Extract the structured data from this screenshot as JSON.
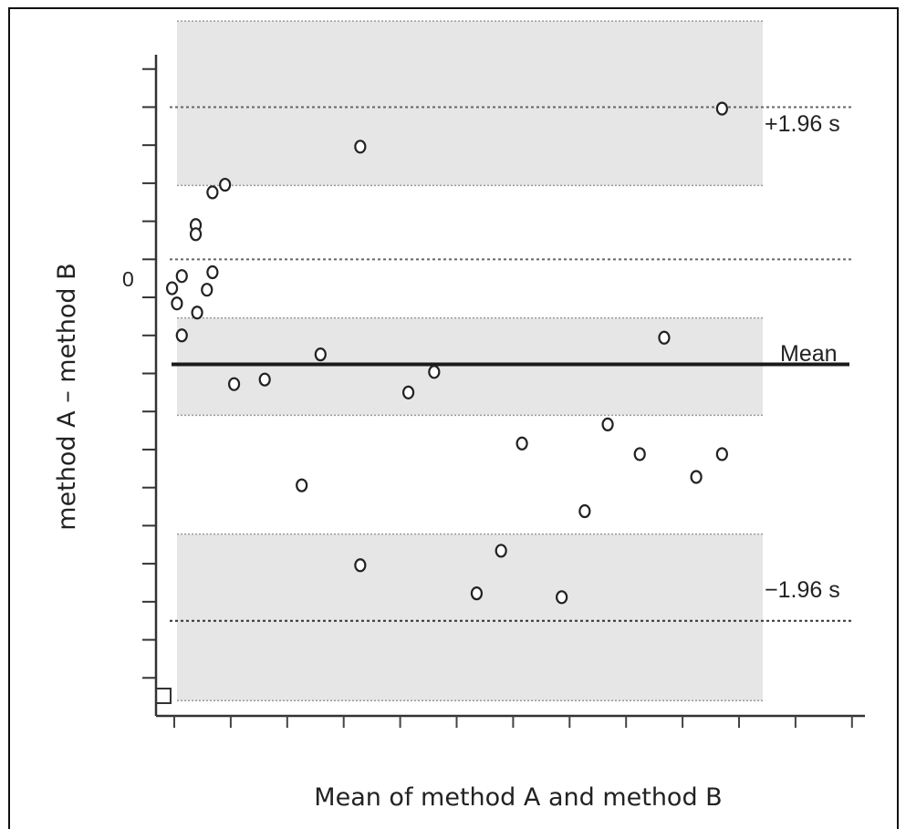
{
  "chart_data": {
    "type": "scatter",
    "title": "",
    "xlabel": "Mean of method A and method B",
    "ylabel": "method A – method B",
    "y_tick_labels": [
      {
        "value": 0,
        "label": "0"
      }
    ],
    "xlim": [
      0,
      100
    ],
    "ylim": [
      -6.0,
      3.0
    ],
    "grid": false,
    "reference_lines": {
      "upper_loa": {
        "value": 2.0,
        "label": "+1.96 s"
      },
      "zero": {
        "value": 0.0
      },
      "mean": {
        "value": -1.38,
        "label": "Mean"
      },
      "lower_loa": {
        "value": -4.75,
        "label": "−1.96 s"
      }
    },
    "confidence_bands": [
      {
        "name": "upper",
        "y_range": [
          0.97,
          3.13
        ]
      },
      {
        "name": "mean",
        "y_range": [
          -2.05,
          -0.77
        ]
      },
      {
        "name": "lower",
        "y_range": [
          -5.8,
          -3.61
        ]
      }
    ],
    "points": [
      {
        "x": 2.3,
        "y": -0.38
      },
      {
        "x": 3.0,
        "y": -0.58
      },
      {
        "x": 3.7,
        "y": -0.22
      },
      {
        "x": 3.7,
        "y": -1.0
      },
      {
        "x": 5.7,
        "y": 0.45
      },
      {
        "x": 5.7,
        "y": 0.33
      },
      {
        "x": 5.9,
        "y": -0.7
      },
      {
        "x": 7.3,
        "y": -0.4
      },
      {
        "x": 8.1,
        "y": -0.17
      },
      {
        "x": 8.1,
        "y": 0.88
      },
      {
        "x": 9.9,
        "y": 0.98
      },
      {
        "x": 11.2,
        "y": -1.64
      },
      {
        "x": 15.6,
        "y": -1.58
      },
      {
        "x": 20.9,
        "y": -2.97
      },
      {
        "x": 23.6,
        "y": -1.25
      },
      {
        "x": 29.3,
        "y": 1.48
      },
      {
        "x": 29.3,
        "y": -4.02
      },
      {
        "x": 36.2,
        "y": -1.75
      },
      {
        "x": 39.9,
        "y": -1.48
      },
      {
        "x": 46.0,
        "y": -4.39
      },
      {
        "x": 49.5,
        "y": -3.83
      },
      {
        "x": 52.5,
        "y": -2.42
      },
      {
        "x": 58.2,
        "y": -4.44
      },
      {
        "x": 61.5,
        "y": -3.31
      },
      {
        "x": 64.8,
        "y": -2.17
      },
      {
        "x": 69.4,
        "y": -2.56
      },
      {
        "x": 72.9,
        "y": -1.03
      },
      {
        "x": 77.5,
        "y": -2.86
      },
      {
        "x": 81.2,
        "y": -2.56
      },
      {
        "x": 81.2,
        "y": 1.98
      }
    ]
  }
}
